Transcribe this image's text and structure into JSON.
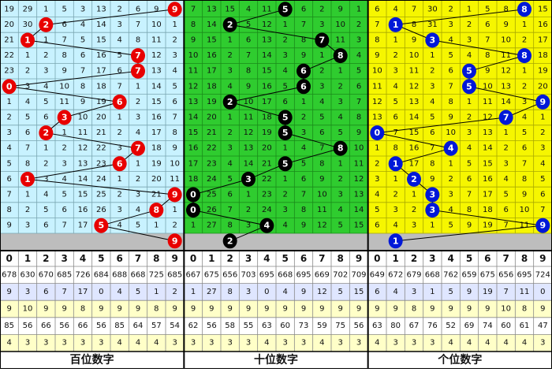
{
  "digits": [
    0,
    1,
    2,
    3,
    4,
    5,
    6,
    7,
    8,
    9
  ],
  "sections": [
    {
      "label": "百位数字",
      "rows": [
        [
          19,
          29,
          1,
          5,
          3,
          13,
          2,
          6,
          9,
          null
        ],
        [
          20,
          30,
          null,
          6,
          4,
          14,
          3,
          7,
          10,
          1
        ],
        [
          21,
          null,
          1,
          7,
          5,
          15,
          4,
          8,
          11,
          2
        ],
        [
          22,
          1,
          2,
          8,
          6,
          16,
          5,
          null,
          12,
          3
        ],
        [
          23,
          2,
          3,
          9,
          7,
          17,
          6,
          null,
          13,
          4
        ],
        [
          null,
          3,
          4,
          10,
          8,
          18,
          7,
          1,
          14,
          5
        ],
        [
          1,
          4,
          5,
          11,
          9,
          19,
          null,
          2,
          15,
          6
        ],
        [
          2,
          5,
          6,
          null,
          10,
          20,
          1,
          3,
          16,
          7
        ],
        [
          3,
          6,
          null,
          1,
          11,
          21,
          2,
          4,
          17,
          8
        ],
        [
          4,
          7,
          1,
          2,
          12,
          22,
          3,
          null,
          18,
          9
        ],
        [
          5,
          8,
          2,
          3,
          13,
          23,
          null,
          1,
          19,
          10
        ],
        [
          6,
          null,
          3,
          4,
          14,
          24,
          1,
          2,
          20,
          11
        ],
        [
          7,
          1,
          4,
          5,
          15,
          25,
          2,
          3,
          21,
          null
        ],
        [
          8,
          2,
          5,
          6,
          16,
          26,
          3,
          4,
          null,
          1
        ],
        [
          9,
          3,
          6,
          7,
          17,
          null,
          4,
          5,
          1,
          2
        ]
      ],
      "draws": [
        9,
        2,
        1,
        7,
        7,
        0,
        6,
        3,
        2,
        7,
        6,
        1,
        9,
        8,
        5,
        9
      ],
      "stats": [
        [
          678,
          630,
          670,
          685,
          726,
          684,
          688,
          668,
          725,
          685
        ],
        [
          9,
          3,
          6,
          7,
          17,
          0,
          4,
          5,
          1,
          2
        ],
        [
          9,
          10,
          9,
          9,
          8,
          9,
          9,
          9,
          8,
          9
        ],
        [
          85,
          56,
          66,
          56,
          66,
          56,
          85,
          64,
          57,
          54
        ],
        [
          4,
          3,
          3,
          3,
          3,
          3,
          4,
          4,
          4,
          3
        ]
      ]
    },
    {
      "label": "十位数字",
      "rows": [
        [
          7,
          13,
          15,
          4,
          11,
          null,
          6,
          2,
          9,
          1
        ],
        [
          8,
          14,
          null,
          5,
          12,
          1,
          7,
          3,
          10,
          2
        ],
        [
          9,
          15,
          1,
          6,
          13,
          2,
          8,
          null,
          11,
          3
        ],
        [
          10,
          16,
          2,
          7,
          14,
          3,
          9,
          1,
          null,
          4
        ],
        [
          11,
          17,
          3,
          8,
          15,
          4,
          null,
          2,
          1,
          5
        ],
        [
          12,
          18,
          4,
          9,
          16,
          5,
          null,
          3,
          2,
          6
        ],
        [
          13,
          19,
          null,
          10,
          17,
          6,
          1,
          4,
          3,
          7
        ],
        [
          14,
          20,
          1,
          11,
          18,
          null,
          2,
          5,
          4,
          8
        ],
        [
          15,
          21,
          2,
          12,
          19,
          null,
          3,
          6,
          5,
          9
        ],
        [
          16,
          22,
          3,
          13,
          20,
          1,
          4,
          7,
          null,
          10
        ],
        [
          17,
          23,
          4,
          14,
          21,
          null,
          5,
          8,
          1,
          11
        ],
        [
          18,
          24,
          5,
          null,
          22,
          1,
          6,
          9,
          2,
          12
        ],
        [
          null,
          25,
          6,
          1,
          23,
          2,
          7,
          10,
          3,
          13
        ],
        [
          null,
          26,
          7,
          2,
          24,
          3,
          8,
          11,
          4,
          14
        ],
        [
          1,
          27,
          8,
          3,
          null,
          4,
          9,
          12,
          5,
          15
        ]
      ],
      "draws": [
        5,
        2,
        7,
        8,
        6,
        6,
        2,
        5,
        5,
        8,
        5,
        3,
        0,
        0,
        4,
        2
      ],
      "stats": [
        [
          667,
          675,
          656,
          703,
          695,
          668,
          695,
          669,
          702,
          709
        ],
        [
          1,
          27,
          8,
          3,
          0,
          4,
          9,
          12,
          5,
          15
        ],
        [
          9,
          9,
          9,
          9,
          9,
          9,
          9,
          9,
          9,
          9
        ],
        [
          62,
          56,
          58,
          55,
          63,
          60,
          73,
          59,
          75,
          56
        ],
        [
          3,
          3,
          3,
          3,
          4,
          3,
          3,
          4,
          3,
          3
        ]
      ]
    },
    {
      "label": "个位数字",
      "rows": [
        [
          6,
          4,
          7,
          30,
          2,
          1,
          5,
          8,
          null,
          15
        ],
        [
          7,
          null,
          8,
          31,
          3,
          2,
          6,
          9,
          1,
          16
        ],
        [
          8,
          1,
          9,
          null,
          4,
          3,
          7,
          10,
          2,
          17
        ],
        [
          9,
          2,
          10,
          1,
          5,
          4,
          8,
          11,
          null,
          18
        ],
        [
          10,
          3,
          11,
          2,
          6,
          null,
          9,
          12,
          1,
          19
        ],
        [
          11,
          4,
          12,
          3,
          7,
          null,
          10,
          13,
          2,
          20
        ],
        [
          12,
          5,
          13,
          4,
          8,
          1,
          11,
          14,
          3,
          null
        ],
        [
          13,
          6,
          14,
          5,
          9,
          2,
          12,
          null,
          4,
          1
        ],
        [
          null,
          7,
          15,
          6,
          10,
          3,
          13,
          1,
          5,
          2
        ],
        [
          1,
          8,
          16,
          7,
          null,
          4,
          14,
          2,
          6,
          3
        ],
        [
          2,
          null,
          17,
          8,
          1,
          5,
          15,
          3,
          7,
          4
        ],
        [
          3,
          1,
          null,
          9,
          2,
          6,
          16,
          4,
          8,
          5
        ],
        [
          4,
          2,
          1,
          null,
          3,
          7,
          17,
          5,
          9,
          6
        ],
        [
          5,
          3,
          2,
          null,
          4,
          8,
          18,
          6,
          10,
          7
        ],
        [
          6,
          4,
          3,
          1,
          5,
          9,
          19,
          7,
          11,
          null
        ]
      ],
      "draws": [
        8,
        1,
        3,
        8,
        5,
        5,
        9,
        7,
        0,
        4,
        1,
        2,
        3,
        3,
        9,
        1
      ],
      "stats": [
        [
          649,
          672,
          679,
          668,
          762,
          659,
          675,
          656,
          695,
          724
        ],
        [
          6,
          4,
          3,
          1,
          5,
          9,
          19,
          7,
          11,
          0
        ],
        [
          9,
          9,
          8,
          9,
          9,
          9,
          9,
          10,
          8,
          9
        ],
        [
          63,
          80,
          67,
          76,
          52,
          69,
          74,
          60,
          61,
          47
        ],
        [
          4,
          3,
          3,
          3,
          4,
          4,
          4,
          4,
          4,
          3
        ]
      ]
    }
  ]
}
